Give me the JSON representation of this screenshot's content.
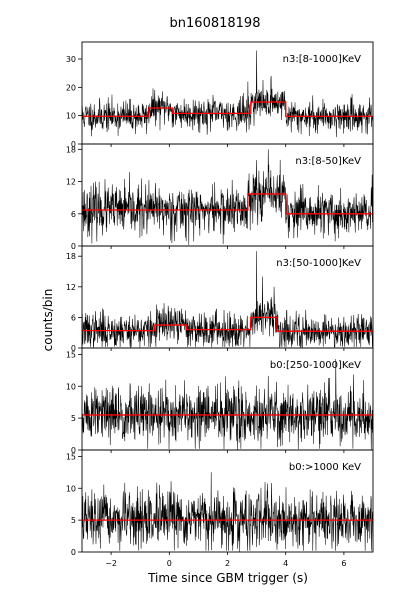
{
  "chart_data": {
    "type": "line",
    "title": "bn160818198",
    "xlabel": "Time since GBM trigger (s)",
    "ylabel": "counts/bin",
    "xlim": [
      -3,
      7
    ],
    "xticks": [
      -2,
      0,
      2,
      4,
      6
    ],
    "xtick_labels": [
      "−2",
      "0",
      "2",
      "4",
      "6"
    ],
    "grid": false,
    "line_color": "#000000",
    "model_color": "#ff0000",
    "panels": [
      {
        "label": "n3:[8-1000]KeV",
        "ylim": [
          0,
          36
        ],
        "yticks": [
          0,
          10,
          20,
          30
        ],
        "ytick_labels": [
          "0",
          "10",
          "20",
          "30"
        ],
        "noise_level": 2.8,
        "seed": 11,
        "model_steps": [
          {
            "x0": -3,
            "x1": -0.7,
            "y": 9.8
          },
          {
            "x0": -0.7,
            "x1": 0.1,
            "y": 12.7
          },
          {
            "x0": 0.1,
            "x1": 2.8,
            "y": 10.8
          },
          {
            "x0": 2.8,
            "x1": 4.0,
            "y": 14.8
          },
          {
            "x0": 4.0,
            "x1": 7,
            "y": 9.8
          }
        ],
        "spikes": [
          {
            "x": 3.0,
            "y": 33
          },
          {
            "x": 3.5,
            "y": 24
          },
          {
            "x": 2.7,
            "y": 22
          }
        ]
      },
      {
        "label": "n3:[8-50]KeV",
        "ylim": [
          0,
          19
        ],
        "yticks": [
          0,
          6,
          12,
          18
        ],
        "ytick_labels": [
          "0",
          "6",
          "12",
          "18"
        ],
        "noise_level": 2.3,
        "seed": 23,
        "model_steps": [
          {
            "x0": -3,
            "x1": 2.7,
            "y": 6.7
          },
          {
            "x0": 2.7,
            "x1": 4.0,
            "y": 9.7
          },
          {
            "x0": 4.0,
            "x1": 7,
            "y": 6.0
          }
        ],
        "spikes": [
          {
            "x": 3.0,
            "y": 16
          },
          {
            "x": 3.4,
            "y": 18
          }
        ]
      },
      {
        "label": "n3:[50-1000]KeV",
        "ylim": [
          0,
          20
        ],
        "yticks": [
          0,
          6,
          12,
          18
        ],
        "ytick_labels": [
          "0",
          "6",
          "12",
          "18"
        ],
        "noise_level": 1.8,
        "seed": 37,
        "model_steps": [
          {
            "x0": -3,
            "x1": -0.5,
            "y": 3.4
          },
          {
            "x0": -0.5,
            "x1": 0.6,
            "y": 4.5
          },
          {
            "x0": 0.6,
            "x1": 2.8,
            "y": 3.6
          },
          {
            "x0": 2.8,
            "x1": 3.7,
            "y": 6.0
          },
          {
            "x0": 3.7,
            "x1": 7,
            "y": 3.3
          }
        ],
        "spikes": [
          {
            "x": 3.0,
            "y": 19
          },
          {
            "x": 3.2,
            "y": 14
          },
          {
            "x": 3.6,
            "y": 12
          }
        ]
      },
      {
        "label": "b0:[250-1000]KeV",
        "ylim": [
          0,
          16
        ],
        "yticks": [
          0,
          5,
          10,
          15
        ],
        "ytick_labels": [
          "0",
          "5",
          "10",
          "15"
        ],
        "noise_level": 2.3,
        "seed": 51,
        "model_steps": [
          {
            "x0": -3,
            "x1": 7,
            "y": 5.5
          }
        ],
        "spikes": []
      },
      {
        "label": "b0:>1000 KeV",
        "ylim": [
          0,
          16
        ],
        "yticks": [
          0,
          5,
          10,
          15
        ],
        "ytick_labels": [
          "0",
          "5",
          "10",
          "15"
        ],
        "noise_level": 2.2,
        "seed": 67,
        "model_steps": [
          {
            "x0": -3,
            "x1": 7,
            "y": 5.0
          }
        ],
        "spikes": []
      }
    ]
  }
}
